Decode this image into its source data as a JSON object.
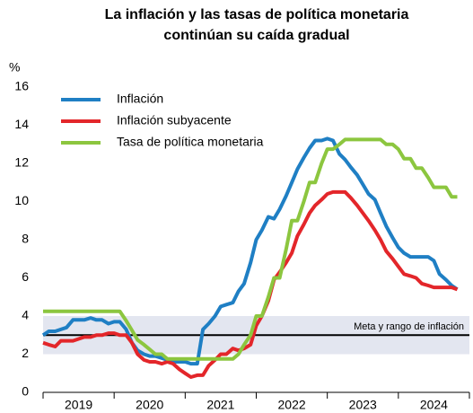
{
  "chart_data": {
    "type": "line",
    "title": "La inflación y las tasas de política monetaria",
    "subtitle": "continúan su caída gradual",
    "y_label": "%",
    "annotation": "Meta y rango de inflación",
    "target": 3,
    "target_range": [
      2,
      4
    ],
    "xlim": [
      2019,
      2025
    ],
    "xticks": [
      {
        "value": 2019,
        "label": "2019"
      },
      {
        "value": 2020,
        "label": "2020"
      },
      {
        "value": 2021,
        "label": "2021"
      },
      {
        "value": 2022,
        "label": "2022"
      },
      {
        "value": 2023,
        "label": "2023"
      },
      {
        "value": 2024,
        "label": "2024"
      }
    ],
    "ylim": [
      0,
      16
    ],
    "yticks": [
      0,
      2,
      4,
      6,
      8,
      10,
      12,
      14,
      16
    ],
    "grid": false,
    "legend": "top-left",
    "x": [
      2019.0,
      2019.08,
      2019.17,
      2019.25,
      2019.33,
      2019.42,
      2019.5,
      2019.58,
      2019.67,
      2019.75,
      2019.83,
      2019.92,
      2020.0,
      2020.08,
      2020.17,
      2020.25,
      2020.33,
      2020.42,
      2020.5,
      2020.58,
      2020.67,
      2020.75,
      2020.83,
      2020.92,
      2021.0,
      2021.08,
      2021.17,
      2021.25,
      2021.33,
      2021.42,
      2021.5,
      2021.58,
      2021.67,
      2021.75,
      2021.83,
      2021.92,
      2022.0,
      2022.08,
      2022.17,
      2022.25,
      2022.33,
      2022.42,
      2022.5,
      2022.58,
      2022.67,
      2022.75,
      2022.83,
      2022.92,
      2023.0,
      2023.08,
      2023.17,
      2023.25,
      2023.33,
      2023.42,
      2023.5,
      2023.58,
      2023.67,
      2023.75,
      2023.83,
      2023.92,
      2024.0,
      2024.08,
      2024.17,
      2024.25,
      2024.33,
      2024.42,
      2024.5,
      2024.58,
      2024.67,
      2024.75,
      2024.83
    ],
    "series": [
      {
        "name": "Inflación",
        "color": "#1f7fc4",
        "values": [
          3.0,
          3.2,
          3.2,
          3.3,
          3.4,
          3.8,
          3.8,
          3.8,
          3.9,
          3.8,
          3.8,
          3.6,
          3.7,
          3.7,
          3.3,
          2.6,
          2.2,
          2.0,
          1.9,
          1.9,
          1.8,
          1.7,
          1.6,
          1.6,
          1.6,
          1.5,
          1.5,
          3.3,
          3.6,
          4.0,
          4.5,
          4.6,
          4.7,
          5.3,
          5.7,
          6.8,
          8.0,
          8.5,
          9.2,
          9.1,
          9.6,
          10.3,
          11.0,
          11.7,
          12.3,
          12.8,
          13.2,
          13.2,
          13.3,
          13.2,
          12.5,
          12.2,
          11.8,
          11.4,
          10.9,
          10.4,
          10.1,
          9.4,
          8.7,
          8.1,
          7.6,
          7.3,
          7.1,
          7.1,
          7.1,
          7.1,
          6.9,
          6.2,
          5.9,
          5.6,
          5.4
        ]
      },
      {
        "name": "Inflación subyacente",
        "color": "#e3262a",
        "values": [
          2.6,
          2.5,
          2.4,
          2.7,
          2.7,
          2.7,
          2.8,
          2.9,
          2.9,
          3.0,
          3.0,
          3.1,
          3.1,
          3.0,
          3.0,
          2.6,
          2.0,
          1.7,
          1.6,
          1.6,
          1.5,
          1.6,
          1.5,
          1.2,
          1.0,
          0.8,
          0.9,
          0.9,
          1.4,
          1.7,
          2.0,
          2.0,
          2.3,
          2.2,
          2.3,
          2.5,
          3.5,
          4.0,
          4.8,
          5.9,
          6.3,
          6.8,
          7.3,
          8.2,
          8.8,
          9.4,
          9.8,
          10.1,
          10.4,
          10.5,
          10.5,
          10.5,
          10.2,
          9.8,
          9.4,
          9.0,
          8.5,
          8.0,
          7.4,
          7.0,
          6.6,
          6.2,
          6.1,
          6.0,
          5.7,
          5.6,
          5.5,
          5.5,
          5.5,
          5.5,
          5.4
        ]
      },
      {
        "name": "Tasa de política monetaria",
        "color": "#8cc63f",
        "values": [
          4.25,
          4.25,
          4.25,
          4.25,
          4.25,
          4.25,
          4.25,
          4.25,
          4.25,
          4.25,
          4.25,
          4.25,
          4.25,
          4.25,
          3.75,
          3.25,
          2.75,
          2.5,
          2.25,
          2.0,
          2.0,
          1.75,
          1.75,
          1.75,
          1.75,
          1.75,
          1.75,
          1.75,
          1.75,
          1.75,
          1.75,
          1.75,
          1.75,
          2.0,
          2.5,
          3.0,
          4.0,
          4.0,
          5.0,
          6.0,
          6.0,
          7.5,
          9.0,
          9.0,
          10.0,
          11.0,
          11.0,
          12.0,
          12.75,
          12.75,
          13.0,
          13.25,
          13.25,
          13.25,
          13.25,
          13.25,
          13.25,
          13.25,
          13.0,
          13.0,
          12.75,
          12.25,
          12.25,
          11.75,
          11.75,
          11.25,
          10.75,
          10.75,
          10.75,
          10.25,
          10.25
        ]
      }
    ]
  }
}
